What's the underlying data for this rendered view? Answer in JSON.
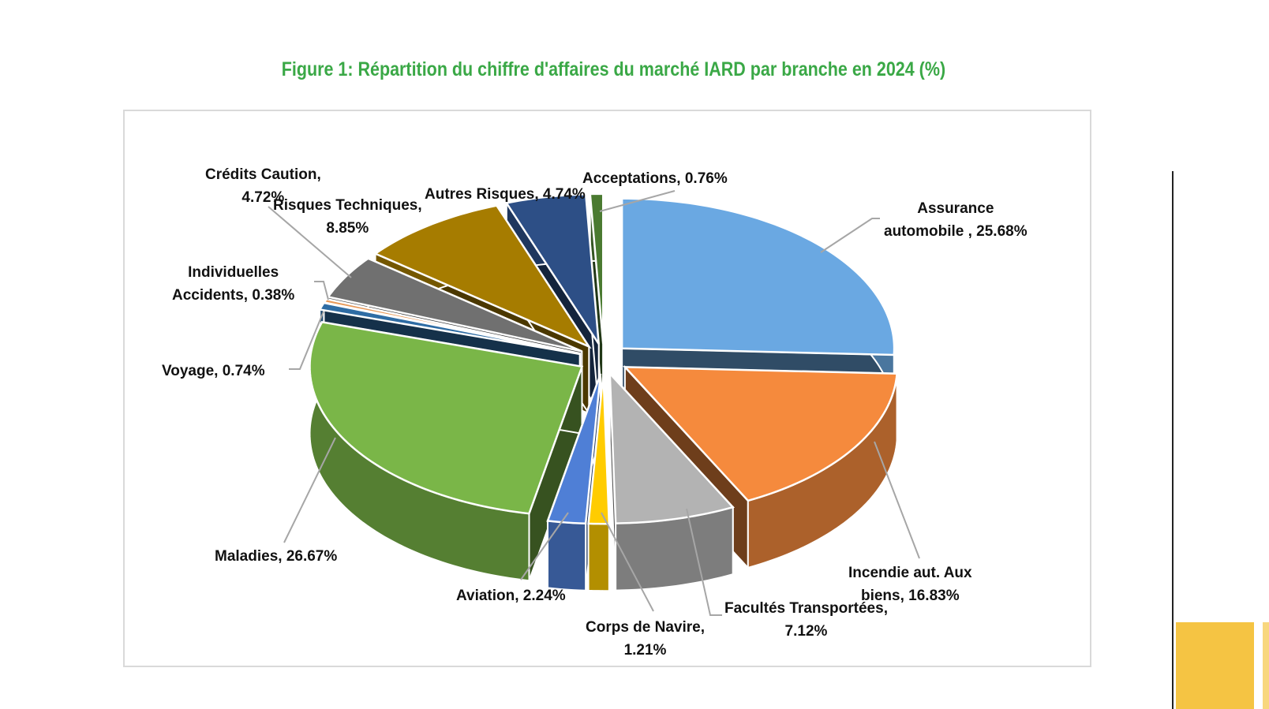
{
  "chart_data": {
    "type": "pie",
    "style": "3d-exploded",
    "title": "Figure 1: Répartition du chiffre d'affaires du marché IARD par branche en 2024 (%)",
    "title_color": "#3aa846",
    "categories": [
      "Assurance automobile",
      "Incendie aut. Aux biens",
      "Facultés Transportées",
      "Corps de Navire",
      "Aviation",
      "Maladies",
      "Voyage",
      "Individuelles Accidents",
      "Crédits Caution",
      "Risques Techniques",
      "Autres Risques",
      "Acceptations"
    ],
    "values": [
      25.68,
      16.83,
      7.12,
      1.21,
      2.24,
      26.67,
      0.74,
      0.38,
      4.72,
      8.85,
      4.74,
      0.76
    ],
    "colors": [
      "#6aa8e2",
      "#f58a3d",
      "#b3b3b3",
      "#ffcc00",
      "#4f7fd6",
      "#7ab648",
      "#2e6ca4",
      "#e89a5a",
      "#707070",
      "#a67c00",
      "#2d4f86",
      "#4a7a30"
    ],
    "data_labels": [
      "Assurance\nautomobile , 25.68%",
      "Incendie aut. Aux\nbiens, 16.83%",
      "Facultés Transportées,\n7.12%",
      "Corps de Navire,\n1.21%",
      "Aviation, 2.24%",
      "Maladies, 26.67%",
      "Voyage, 0.74%",
      "Individuelles\nAccidents, 0.38%",
      "Crédits Caution,\n4.72%",
      "Risques Techniques,\n8.85%",
      "Autres Risques, 4.74%",
      "Acceptations, 0.76%"
    ],
    "unit": "%"
  }
}
